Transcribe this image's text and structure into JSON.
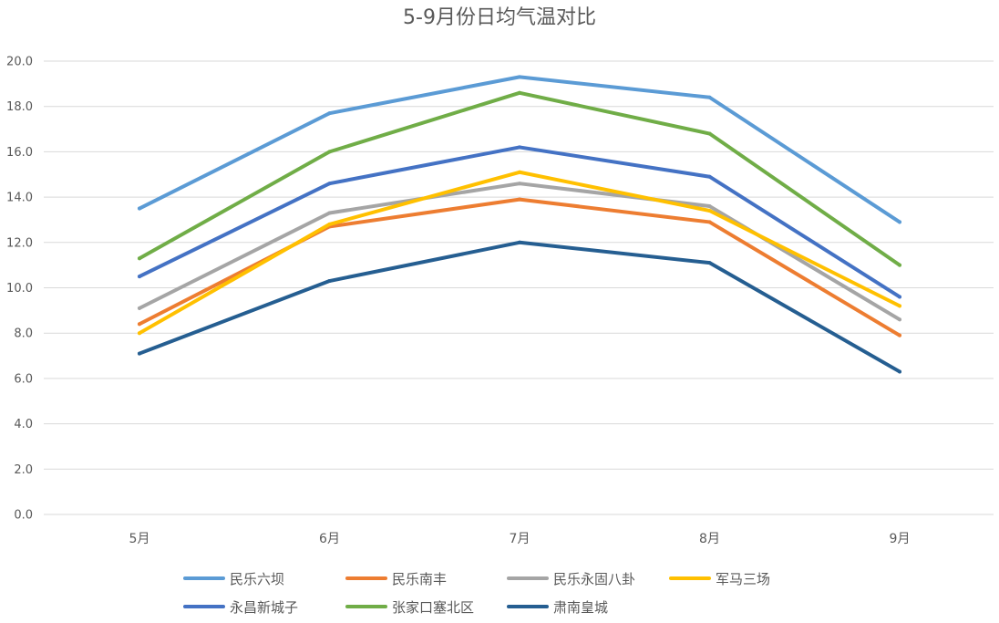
{
  "chart_data": {
    "type": "line",
    "title": "5-9月份日均气温对比",
    "xlabel": "",
    "ylabel": "",
    "categories": [
      "5月",
      "6月",
      "7月",
      "8月",
      "9月"
    ],
    "ylim": [
      0,
      20
    ],
    "ytick_step": 2,
    "y_tick_labels": [
      "0.0",
      "2.0",
      "4.0",
      "6.0",
      "8.0",
      "10.0",
      "12.0",
      "14.0",
      "16.0",
      "18.0",
      "20.0"
    ],
    "grid": true,
    "legend_position": "bottom",
    "series": [
      {
        "name": "民乐六坝",
        "color": "#5b9bd5",
        "values": [
          13.5,
          17.7,
          19.3,
          18.4,
          12.9
        ]
      },
      {
        "name": "民乐南丰",
        "color": "#ed7d31",
        "values": [
          8.4,
          12.7,
          13.9,
          12.9,
          7.9
        ]
      },
      {
        "name": "民乐永固八卦",
        "color": "#a5a5a5",
        "values": [
          9.1,
          13.3,
          14.6,
          13.6,
          8.6
        ]
      },
      {
        "name": "军马三场",
        "color": "#ffc000",
        "values": [
          8.0,
          12.8,
          15.1,
          13.4,
          9.2
        ]
      },
      {
        "name": "永昌新城子",
        "color": "#4472c4",
        "values": [
          10.5,
          14.6,
          16.2,
          14.9,
          9.6
        ]
      },
      {
        "name": "张家口塞北区",
        "color": "#70ad47",
        "values": [
          11.3,
          16.0,
          18.6,
          16.8,
          11.0
        ]
      },
      {
        "name": "肃南皇城",
        "color": "#255e91",
        "values": [
          7.1,
          10.3,
          12.0,
          11.1,
          6.3
        ]
      }
    ]
  }
}
